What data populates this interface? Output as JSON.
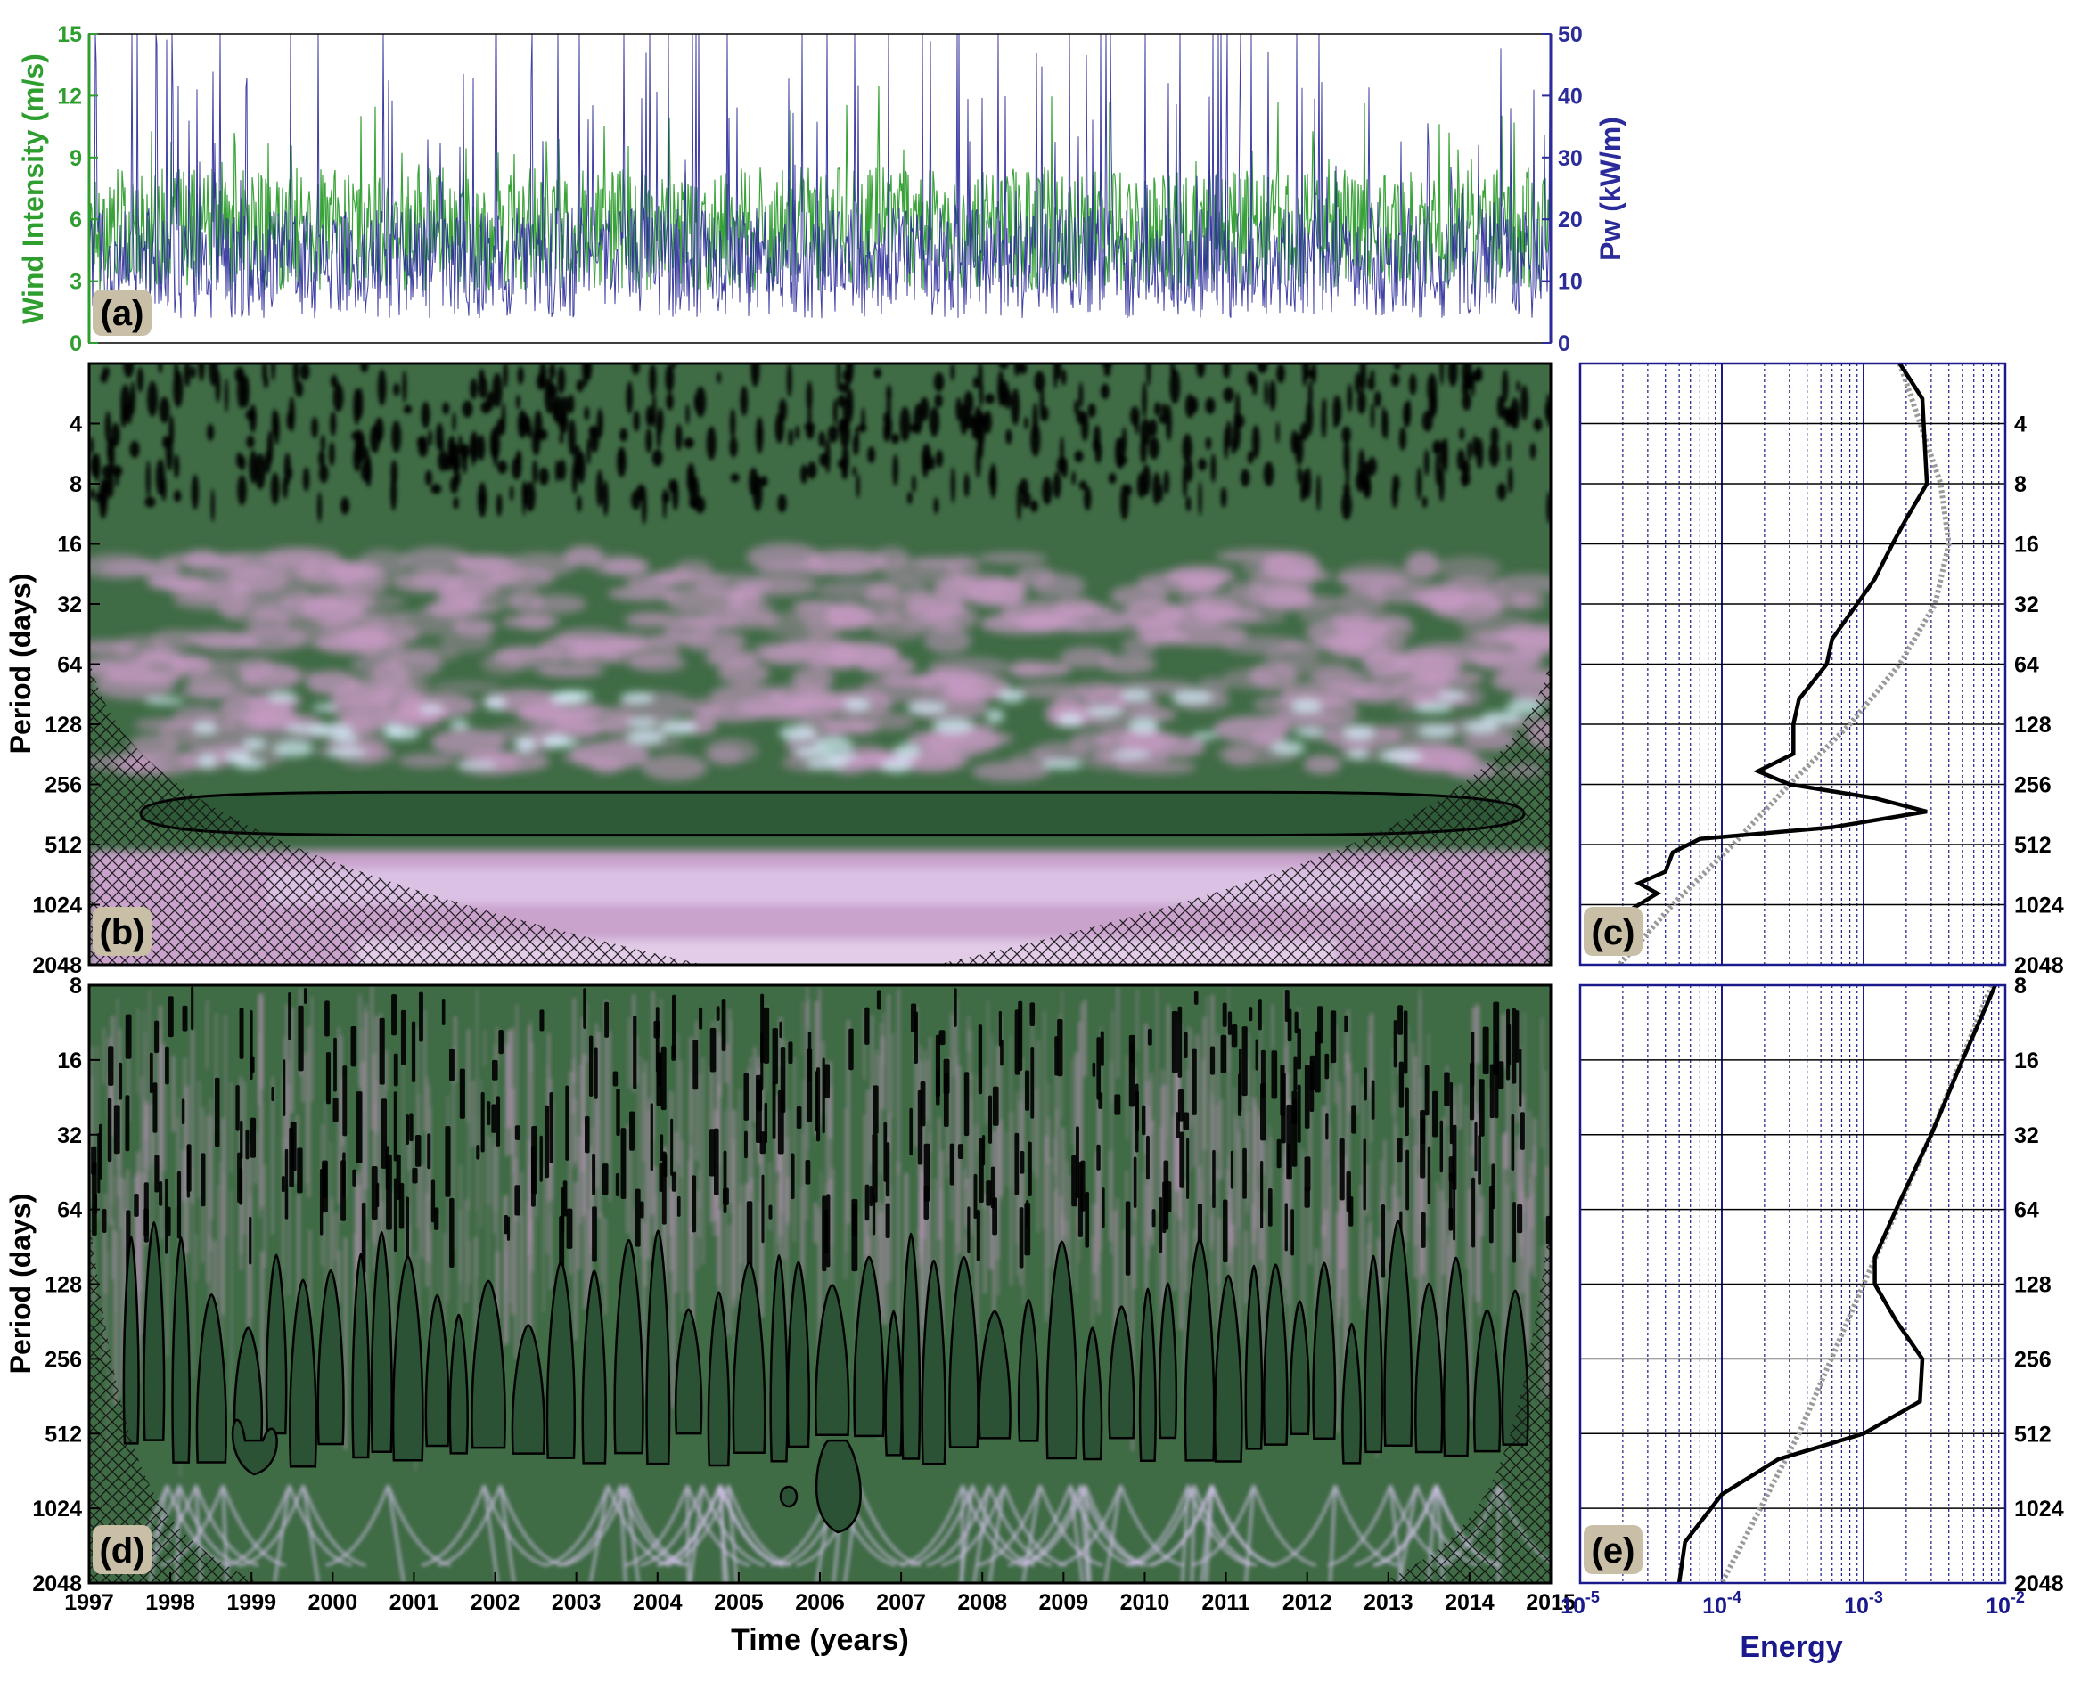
{
  "colors": {
    "wind": "#2e9e2e",
    "power": "#2b2b9a",
    "spectrum_green": "#3f6b45",
    "spectrum_pink": "#c79ac4",
    "global_line": "#000000",
    "significance_line": "#9a9a9a",
    "grid_blue": "#1a1a8c",
    "label_box": "#c8bfa6"
  },
  "panel_labels": {
    "a": "(a)",
    "b": "(b)",
    "c": "(c)",
    "d": "(d)",
    "e": "(e)"
  },
  "chart_data": [
    {
      "id": "a",
      "type": "line",
      "ylabel_left": "Wind Intensity (m/s)",
      "ylabel_right": "Pw (kW/m)",
      "xlim": [
        1997,
        2015
      ],
      "ylim_left": [
        0,
        15
      ],
      "ylim_right": [
        0,
        50
      ],
      "yticks_left": [
        "0",
        "3",
        "6",
        "9",
        "12",
        "15"
      ],
      "yticks_right": [
        "0",
        "10",
        "20",
        "30",
        "40",
        "50"
      ],
      "series": [
        {
          "axis": "left",
          "color": "#2e9e2e",
          "mean": 5.5,
          "spread": 3.0,
          "max": 15
        },
        {
          "axis": "right",
          "color": "#2b2b9a",
          "mean": 13,
          "spread": 9,
          "max": 50
        }
      ]
    },
    {
      "id": "b",
      "type": "heatmap",
      "ylabel": "Period (days)",
      "xlim": [
        1997,
        2015
      ],
      "ylim": [
        2,
        2048
      ],
      "yscale": "log2",
      "yticks": [
        "4",
        "8",
        "16",
        "32",
        "64",
        "128",
        "256",
        "512",
        "1024",
        "2048"
      ],
      "significant_band_period": [
        280,
        460
      ],
      "pink_band_period": [
        550,
        1600
      ]
    },
    {
      "id": "c",
      "type": "line",
      "xscale": "log",
      "xlim": [
        1e-05,
        0.01
      ],
      "ylim": [
        2,
        2048
      ],
      "yscale": "log2",
      "yticks": [
        "4",
        "8",
        "16",
        "32",
        "64",
        "128",
        "256",
        "512",
        "1024",
        "2048"
      ],
      "global_spectrum": [
        {
          "period": 2,
          "energy": 0.0018
        },
        {
          "period": 3,
          "energy": 0.0026
        },
        {
          "period": 5,
          "energy": 0.0027
        },
        {
          "period": 8,
          "energy": 0.0028
        },
        {
          "period": 12,
          "energy": 0.002
        },
        {
          "period": 16,
          "energy": 0.0016
        },
        {
          "period": 24,
          "energy": 0.0012
        },
        {
          "period": 32,
          "energy": 0.0009
        },
        {
          "period": 48,
          "energy": 0.0006
        },
        {
          "period": 64,
          "energy": 0.00055
        },
        {
          "period": 96,
          "energy": 0.00035
        },
        {
          "period": 128,
          "energy": 0.00032
        },
        {
          "period": 180,
          "energy": 0.00032
        },
        {
          "period": 220,
          "energy": 0.00018
        },
        {
          "period": 256,
          "energy": 0.0003
        },
        {
          "period": 300,
          "energy": 0.0012
        },
        {
          "period": 350,
          "energy": 0.0028
        },
        {
          "period": 420,
          "energy": 0.0006
        },
        {
          "period": 480,
          "energy": 7e-05
        },
        {
          "period": 560,
          "energy": 4.5e-05
        },
        {
          "period": 700,
          "energy": 4e-05
        },
        {
          "period": 800,
          "energy": 2.6e-05
        },
        {
          "period": 900,
          "energy": 3.5e-05
        },
        {
          "period": 1100,
          "energy": 2.2e-05
        },
        {
          "period": 1300,
          "energy": 1.7e-05
        }
      ],
      "significance": [
        {
          "period": 2,
          "energy": 0.0018
        },
        {
          "period": 8,
          "energy": 0.0035
        },
        {
          "period": 16,
          "energy": 0.004
        },
        {
          "period": 32,
          "energy": 0.0032
        },
        {
          "period": 64,
          "energy": 0.0018
        },
        {
          "period": 128,
          "energy": 0.0008
        },
        {
          "period": 256,
          "energy": 0.0003
        },
        {
          "period": 512,
          "energy": 0.00012
        },
        {
          "period": 1024,
          "energy": 4.5e-05
        },
        {
          "period": 2048,
          "energy": 1.9e-05
        }
      ]
    },
    {
      "id": "d",
      "type": "heatmap",
      "ylabel": "Period (days)",
      "xlabel": "Time (years)",
      "xlim": [
        1997,
        2015
      ],
      "xticks": [
        "1997",
        "1998",
        "1999",
        "2000",
        "2001",
        "2002",
        "2003",
        "2004",
        "2005",
        "2006",
        "2007",
        "2008",
        "2009",
        "2010",
        "2011",
        "2012",
        "2013",
        "2014",
        "2015"
      ],
      "ylim": [
        8,
        2048
      ],
      "yscale": "log2",
      "yticks": [
        "8",
        "16",
        "32",
        "64",
        "128",
        "256",
        "512",
        "1024",
        "2048"
      ],
      "significant_band_period": [
        150,
        700
      ]
    },
    {
      "id": "e",
      "type": "line",
      "xscale": "log",
      "xlabel": "Energy",
      "xlim": [
        1e-05,
        0.01
      ],
      "xticks": [
        "10-5",
        "10-4",
        "10-3",
        "10-2"
      ],
      "ylim": [
        8,
        2048
      ],
      "yscale": "log2",
      "yticks": [
        "8",
        "16",
        "32",
        "64",
        "128",
        "256",
        "512",
        "1024",
        "2048"
      ],
      "global_spectrum": [
        {
          "period": 8,
          "energy": 0.0085
        },
        {
          "period": 16,
          "energy": 0.005
        },
        {
          "period": 32,
          "energy": 0.003
        },
        {
          "period": 64,
          "energy": 0.0017
        },
        {
          "period": 100,
          "energy": 0.0012
        },
        {
          "period": 128,
          "energy": 0.0012
        },
        {
          "period": 180,
          "energy": 0.0017
        },
        {
          "period": 256,
          "energy": 0.0026
        },
        {
          "period": 380,
          "energy": 0.0025
        },
        {
          "period": 512,
          "energy": 0.001
        },
        {
          "period": 650,
          "energy": 0.00025
        },
        {
          "period": 900,
          "energy": 0.0001
        },
        {
          "period": 1400,
          "energy": 5.5e-05
        },
        {
          "period": 2048,
          "energy": 5e-05
        }
      ],
      "significance": [
        {
          "period": 8,
          "energy": 0.008
        },
        {
          "period": 32,
          "energy": 0.003
        },
        {
          "period": 128,
          "energy": 0.001
        },
        {
          "period": 512,
          "energy": 0.00035
        },
        {
          "period": 2048,
          "energy": 0.0001
        }
      ]
    }
  ]
}
